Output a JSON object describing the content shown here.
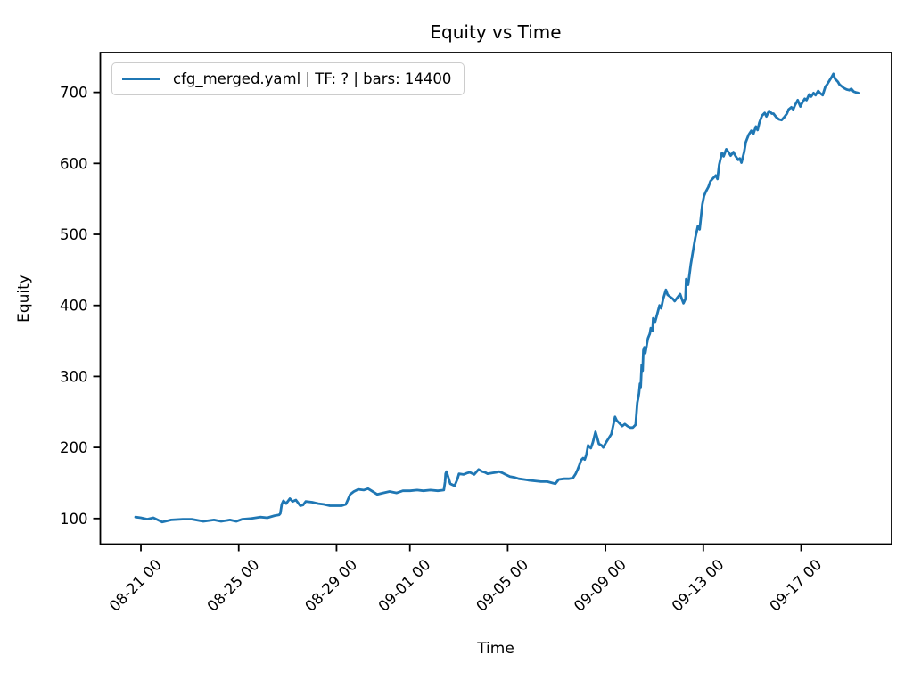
{
  "chart_data": {
    "type": "line",
    "title": "Equity vs Time",
    "xlabel": "Time",
    "ylabel": "Equity",
    "grid": false,
    "legend_position": "upper left",
    "line_color": "#1f77b4",
    "x_axis": {
      "note": "time axis, t measured in days since tick 08-21 00",
      "lim": [
        -1.66,
        30.7
      ],
      "ticks": [
        {
          "t": 0,
          "label": "08-21 00"
        },
        {
          "t": 4,
          "label": "08-25 00"
        },
        {
          "t": 8,
          "label": "08-29 00"
        },
        {
          "t": 11,
          "label": "09-01 00"
        },
        {
          "t": 15,
          "label": "09-05 00"
        },
        {
          "t": 19,
          "label": "09-09 00"
        },
        {
          "t": 23,
          "label": "09-13 00"
        },
        {
          "t": 27,
          "label": "09-17 00"
        }
      ]
    },
    "y_axis": {
      "lim": [
        64,
        756
      ],
      "ticks": [
        100,
        200,
        300,
        400,
        500,
        600,
        700
      ]
    },
    "series": [
      {
        "name": "cfg_merged.yaml | TF: ? | bars: 14400",
        "points": [
          [
            -0.22,
            102
          ],
          [
            0,
            101
          ],
          [
            0.26,
            99
          ],
          [
            0.51,
            101
          ],
          [
            0.87,
            95
          ],
          [
            1.24,
            98
          ],
          [
            1.71,
            99
          ],
          [
            2.08,
            99
          ],
          [
            2.55,
            96
          ],
          [
            2.99,
            98
          ],
          [
            3.28,
            96
          ],
          [
            3.64,
            98
          ],
          [
            3.9,
            96
          ],
          [
            4.15,
            99
          ],
          [
            4.52,
            100
          ],
          [
            4.88,
            102
          ],
          [
            5.17,
            101
          ],
          [
            5.47,
            104
          ],
          [
            5.65,
            105
          ],
          [
            5.7,
            107
          ],
          [
            5.76,
            120
          ],
          [
            5.83,
            125
          ],
          [
            5.94,
            121
          ],
          [
            6.09,
            128
          ],
          [
            6.2,
            124
          ],
          [
            6.34,
            126
          ],
          [
            6.52,
            118
          ],
          [
            6.63,
            119
          ],
          [
            6.74,
            124
          ],
          [
            7,
            123
          ],
          [
            7.25,
            121
          ],
          [
            7.47,
            120
          ],
          [
            7.73,
            118
          ],
          [
            8.02,
            118
          ],
          [
            8.2,
            118
          ],
          [
            8.38,
            120
          ],
          [
            8.56,
            134
          ],
          [
            8.71,
            138
          ],
          [
            8.89,
            141
          ],
          [
            9.11,
            140
          ],
          [
            9.29,
            142
          ],
          [
            9.48,
            138
          ],
          [
            9.66,
            134
          ],
          [
            9.91,
            136
          ],
          [
            10.17,
            138
          ],
          [
            10.46,
            136
          ],
          [
            10.71,
            139
          ],
          [
            11.01,
            139
          ],
          [
            11.3,
            140
          ],
          [
            11.55,
            139
          ],
          [
            11.84,
            140
          ],
          [
            12.14,
            139
          ],
          [
            12.39,
            140
          ],
          [
            12.44,
            152
          ],
          [
            12.46,
            163
          ],
          [
            12.5,
            166
          ],
          [
            12.57,
            158
          ],
          [
            12.65,
            149
          ],
          [
            12.83,
            146
          ],
          [
            12.94,
            155
          ],
          [
            13.01,
            163
          ],
          [
            13.19,
            162
          ],
          [
            13.34,
            164
          ],
          [
            13.45,
            165
          ],
          [
            13.63,
            162
          ],
          [
            13.81,
            169
          ],
          [
            13.96,
            166
          ],
          [
            14.07,
            165
          ],
          [
            14.18,
            163
          ],
          [
            14.36,
            164
          ],
          [
            14.54,
            165
          ],
          [
            14.65,
            166
          ],
          [
            14.8,
            164
          ],
          [
            14.91,
            162
          ],
          [
            15.09,
            159
          ],
          [
            15.27,
            158
          ],
          [
            15.45,
            156
          ],
          [
            15.67,
            155
          ],
          [
            15.85,
            154
          ],
          [
            16.11,
            153
          ],
          [
            16.36,
            152
          ],
          [
            16.62,
            152
          ],
          [
            16.84,
            150
          ],
          [
            16.95,
            149
          ],
          [
            17.09,
            155
          ],
          [
            17.31,
            156
          ],
          [
            17.49,
            156
          ],
          [
            17.67,
            157
          ],
          [
            17.78,
            163
          ],
          [
            17.86,
            169
          ],
          [
            17.93,
            175
          ],
          [
            18,
            182
          ],
          [
            18.08,
            185
          ],
          [
            18.15,
            183
          ],
          [
            18.22,
            190
          ],
          [
            18.29,
            203
          ],
          [
            18.4,
            199
          ],
          [
            18.48,
            207
          ],
          [
            18.59,
            222
          ],
          [
            18.66,
            214
          ],
          [
            18.73,
            205
          ],
          [
            18.84,
            203
          ],
          [
            18.91,
            200
          ],
          [
            19.02,
            207
          ],
          [
            19.13,
            213
          ],
          [
            19.24,
            219
          ],
          [
            19.31,
            230
          ],
          [
            19.39,
            243
          ],
          [
            19.46,
            238
          ],
          [
            19.57,
            234
          ],
          [
            19.68,
            230
          ],
          [
            19.79,
            233
          ],
          [
            19.9,
            230
          ],
          [
            20.01,
            228
          ],
          [
            20.12,
            228
          ],
          [
            20.23,
            232
          ],
          [
            20.3,
            263
          ],
          [
            20.34,
            270
          ],
          [
            20.37,
            276
          ],
          [
            20.41,
            290
          ],
          [
            20.44,
            285
          ],
          [
            20.48,
            316
          ],
          [
            20.52,
            308
          ],
          [
            20.55,
            337
          ],
          [
            20.59,
            341
          ],
          [
            20.63,
            333
          ],
          [
            20.7,
            347
          ],
          [
            20.74,
            354
          ],
          [
            20.81,
            360
          ],
          [
            20.85,
            368
          ],
          [
            20.92,
            364
          ],
          [
            20.95,
            382
          ],
          [
            21.03,
            377
          ],
          [
            21.14,
            391
          ],
          [
            21.21,
            400
          ],
          [
            21.28,
            396
          ],
          [
            21.36,
            409
          ],
          [
            21.47,
            422
          ],
          [
            21.54,
            415
          ],
          [
            21.65,
            412
          ],
          [
            21.76,
            409
          ],
          [
            21.83,
            406
          ],
          [
            21.94,
            411
          ],
          [
            22.05,
            416
          ],
          [
            22.12,
            409
          ],
          [
            22.19,
            403
          ],
          [
            22.27,
            409
          ],
          [
            22.3,
            437
          ],
          [
            22.38,
            429
          ],
          [
            22.49,
            458
          ],
          [
            22.59,
            479
          ],
          [
            22.67,
            495
          ],
          [
            22.78,
            512
          ],
          [
            22.85,
            507
          ],
          [
            22.92,
            529
          ],
          [
            22.96,
            542
          ],
          [
            23.03,
            554
          ],
          [
            23.1,
            560
          ],
          [
            23.21,
            567
          ],
          [
            23.29,
            575
          ],
          [
            23.4,
            579
          ],
          [
            23.51,
            583
          ],
          [
            23.58,
            578
          ],
          [
            23.65,
            598
          ],
          [
            23.76,
            615
          ],
          [
            23.83,
            610
          ],
          [
            23.94,
            620
          ],
          [
            24.05,
            615
          ],
          [
            24.12,
            611
          ],
          [
            24.23,
            616
          ],
          [
            24.31,
            611
          ],
          [
            24.42,
            605
          ],
          [
            24.49,
            607
          ],
          [
            24.56,
            601
          ],
          [
            24.67,
            616
          ],
          [
            24.74,
            630
          ],
          [
            24.85,
            640
          ],
          [
            24.96,
            646
          ],
          [
            25.04,
            641
          ],
          [
            25.15,
            652
          ],
          [
            25.22,
            647
          ],
          [
            25.29,
            657
          ],
          [
            25.4,
            667
          ],
          [
            25.51,
            671
          ],
          [
            25.58,
            666
          ],
          [
            25.69,
            674
          ],
          [
            25.8,
            670
          ],
          [
            25.87,
            670
          ],
          [
            25.98,
            665
          ],
          [
            26.09,
            662
          ],
          [
            26.2,
            661
          ],
          [
            26.31,
            665
          ],
          [
            26.42,
            670
          ],
          [
            26.49,
            676
          ],
          [
            26.6,
            679
          ],
          [
            26.68,
            676
          ],
          [
            26.75,
            682
          ],
          [
            26.86,
            689
          ],
          [
            26.97,
            680
          ],
          [
            27.04,
            685
          ],
          [
            27.15,
            691
          ],
          [
            27.22,
            689
          ],
          [
            27.33,
            697
          ],
          [
            27.41,
            694
          ],
          [
            27.51,
            699
          ],
          [
            27.59,
            696
          ],
          [
            27.7,
            702
          ],
          [
            27.77,
            699
          ],
          [
            27.88,
            696
          ],
          [
            27.99,
            708
          ],
          [
            28.06,
            711
          ],
          [
            28.13,
            715
          ],
          [
            28.24,
            721
          ],
          [
            28.32,
            726
          ],
          [
            28.39,
            719
          ],
          [
            28.5,
            715
          ],
          [
            28.57,
            711
          ],
          [
            28.68,
            708
          ],
          [
            28.75,
            706
          ],
          [
            28.86,
            704
          ],
          [
            28.97,
            703
          ],
          [
            29.05,
            705
          ],
          [
            29.15,
            701
          ],
          [
            29.23,
            700
          ],
          [
            29.34,
            699
          ]
        ]
      }
    ]
  }
}
